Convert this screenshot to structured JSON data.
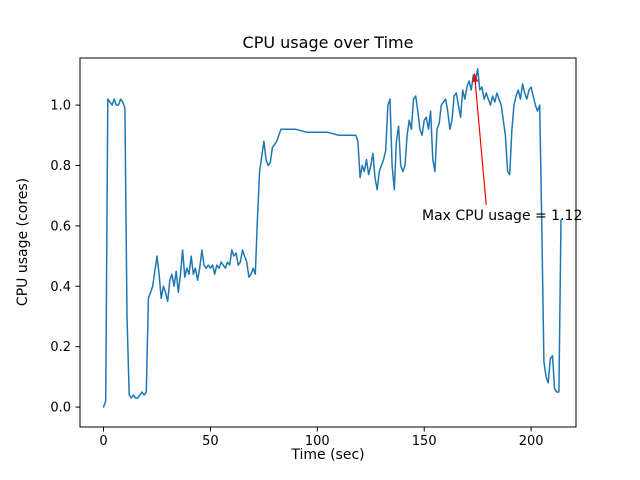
{
  "chart_data": {
    "type": "line",
    "title": "CPU usage over Time",
    "xlabel": "Time (sec)",
    "ylabel": "CPU usage (cores)",
    "xlim": [
      -11,
      221
    ],
    "ylim": [
      -0.066,
      1.156
    ],
    "xticks": [
      0,
      50,
      100,
      150,
      200
    ],
    "xtick_labels": [
      "0",
      "50",
      "100",
      "150",
      "200"
    ],
    "yticks": [
      0.0,
      0.2,
      0.4,
      0.6,
      0.8,
      1.0
    ],
    "ytick_labels": [
      "0.0",
      "0.2",
      "0.4",
      "0.6",
      "0.8",
      "1.0"
    ],
    "line_color": "#1f77b4",
    "grid": false,
    "legend": null,
    "annotation": {
      "text": "Max CPU usage = 1.12",
      "color": "#ff0000",
      "text_xy": [
        148.5,
        0.635
      ],
      "arrow_start": [
        179,
        0.67
      ],
      "arrow_tip": [
        173.5,
        1.105
      ],
      "max_value": 1.12,
      "max_time": 175
    },
    "points": [
      [
        0,
        0.0
      ],
      [
        1,
        0.02
      ],
      [
        2,
        1.02
      ],
      [
        3,
        1.01
      ],
      [
        4,
        1.0
      ],
      [
        5,
        1.02
      ],
      [
        6,
        1.0
      ],
      [
        7,
        1.0
      ],
      [
        8,
        1.02
      ],
      [
        9,
        1.01
      ],
      [
        10,
        0.99
      ],
      [
        11,
        0.3
      ],
      [
        12,
        0.04
      ],
      [
        13,
        0.03
      ],
      [
        14,
        0.04
      ],
      [
        15,
        0.03
      ],
      [
        16,
        0.03
      ],
      [
        17,
        0.04
      ],
      [
        18,
        0.05
      ],
      [
        19,
        0.04
      ],
      [
        20,
        0.05
      ],
      [
        21,
        0.36
      ],
      [
        22,
        0.38
      ],
      [
        23,
        0.4
      ],
      [
        24,
        0.45
      ],
      [
        25,
        0.5
      ],
      [
        26,
        0.44
      ],
      [
        27,
        0.36
      ],
      [
        28,
        0.4
      ],
      [
        29,
        0.38
      ],
      [
        30,
        0.35
      ],
      [
        31,
        0.42
      ],
      [
        32,
        0.44
      ],
      [
        33,
        0.4
      ],
      [
        34,
        0.45
      ],
      [
        35,
        0.38
      ],
      [
        36,
        0.44
      ],
      [
        37,
        0.52
      ],
      [
        38,
        0.43
      ],
      [
        39,
        0.46
      ],
      [
        40,
        0.44
      ],
      [
        41,
        0.5
      ],
      [
        42,
        0.44
      ],
      [
        43,
        0.46
      ],
      [
        44,
        0.42
      ],
      [
        45,
        0.46
      ],
      [
        46,
        0.52
      ],
      [
        47,
        0.47
      ],
      [
        48,
        0.46
      ],
      [
        49,
        0.47
      ],
      [
        50,
        0.46
      ],
      [
        51,
        0.47
      ],
      [
        52,
        0.44
      ],
      [
        53,
        0.47
      ],
      [
        54,
        0.46
      ],
      [
        55,
        0.48
      ],
      [
        56,
        0.47
      ],
      [
        57,
        0.46
      ],
      [
        58,
        0.48
      ],
      [
        59,
        0.47
      ],
      [
        60,
        0.52
      ],
      [
        61,
        0.5
      ],
      [
        62,
        0.51
      ],
      [
        63,
        0.47
      ],
      [
        64,
        0.48
      ],
      [
        65,
        0.52
      ],
      [
        66,
        0.5
      ],
      [
        67,
        0.48
      ],
      [
        68,
        0.43
      ],
      [
        69,
        0.44
      ],
      [
        70,
        0.46
      ],
      [
        71,
        0.44
      ],
      [
        72,
        0.62
      ],
      [
        73,
        0.78
      ],
      [
        74,
        0.83
      ],
      [
        75,
        0.88
      ],
      [
        76,
        0.82
      ],
      [
        77,
        0.8
      ],
      [
        78,
        0.81
      ],
      [
        79,
        0.86
      ],
      [
        80,
        0.87
      ],
      [
        81,
        0.88
      ],
      [
        82,
        0.9
      ],
      [
        83,
        0.92
      ],
      [
        85,
        0.92
      ],
      [
        90,
        0.92
      ],
      [
        95,
        0.91
      ],
      [
        100,
        0.91
      ],
      [
        105,
        0.91
      ],
      [
        110,
        0.9
      ],
      [
        115,
        0.9
      ],
      [
        118,
        0.9
      ],
      [
        119,
        0.88
      ],
      [
        120,
        0.76
      ],
      [
        121,
        0.8
      ],
      [
        122,
        0.78
      ],
      [
        123,
        0.82
      ],
      [
        124,
        0.77
      ],
      [
        125,
        0.8
      ],
      [
        126,
        0.84
      ],
      [
        127,
        0.76
      ],
      [
        128,
        0.72
      ],
      [
        129,
        0.78
      ],
      [
        130,
        0.8
      ],
      [
        131,
        0.82
      ],
      [
        132,
        0.85
      ],
      [
        133,
        1.0
      ],
      [
        134,
        1.02
      ],
      [
        135,
        0.8
      ],
      [
        136,
        0.72
      ],
      [
        137,
        0.88
      ],
      [
        138,
        0.93
      ],
      [
        139,
        0.8
      ],
      [
        140,
        0.78
      ],
      [
        141,
        0.8
      ],
      [
        142,
        0.9
      ],
      [
        143,
        0.95
      ],
      [
        144,
        0.92
      ],
      [
        145,
        1.02
      ],
      [
        146,
        1.03
      ],
      [
        147,
        0.98
      ],
      [
        148,
        0.92
      ],
      [
        149,
        0.9
      ],
      [
        150,
        0.95
      ],
      [
        151,
        0.96
      ],
      [
        152,
        0.92
      ],
      [
        153,
        0.98
      ],
      [
        154,
        0.82
      ],
      [
        155,
        0.78
      ],
      [
        156,
        0.92
      ],
      [
        157,
        0.94
      ],
      [
        158,
        1.0
      ],
      [
        159,
        1.01
      ],
      [
        160,
        1.02
      ],
      [
        161,
        0.98
      ],
      [
        162,
        0.92
      ],
      [
        163,
        0.95
      ],
      [
        164,
        1.03
      ],
      [
        165,
        1.04
      ],
      [
        166,
        1.0
      ],
      [
        167,
        0.96
      ],
      [
        168,
        1.05
      ],
      [
        169,
        1.02
      ],
      [
        170,
        1.06
      ],
      [
        171,
        1.08
      ],
      [
        172,
        1.05
      ],
      [
        173,
        1.1
      ],
      [
        174,
        1.08
      ],
      [
        175,
        1.12
      ],
      [
        176,
        1.05
      ],
      [
        177,
        1.06
      ],
      [
        178,
        1.02
      ],
      [
        179,
        1.04
      ],
      [
        180,
        1.02
      ],
      [
        181,
        1.0
      ],
      [
        182,
        1.03
      ],
      [
        183,
        1.01
      ],
      [
        184,
        1.04
      ],
      [
        185,
        1.02
      ],
      [
        186,
        1.0
      ],
      [
        187,
        0.95
      ],
      [
        188,
        0.9
      ],
      [
        189,
        0.78
      ],
      [
        190,
        0.77
      ],
      [
        191,
        0.92
      ],
      [
        192,
        1.0
      ],
      [
        193,
        1.03
      ],
      [
        194,
        1.05
      ],
      [
        195,
        1.02
      ],
      [
        196,
        1.07
      ],
      [
        197,
        1.04
      ],
      [
        198,
        1.02
      ],
      [
        199,
        1.05
      ],
      [
        200,
        1.06
      ],
      [
        201,
        1.03
      ],
      [
        202,
        1.0
      ],
      [
        203,
        0.98
      ],
      [
        204,
        1.0
      ],
      [
        205,
        0.6
      ],
      [
        206,
        0.15
      ],
      [
        207,
        0.1
      ],
      [
        208,
        0.08
      ],
      [
        209,
        0.16
      ],
      [
        210,
        0.17
      ],
      [
        211,
        0.06
      ],
      [
        212,
        0.05
      ],
      [
        213,
        0.05
      ],
      [
        214,
        0.62
      ]
    ]
  }
}
